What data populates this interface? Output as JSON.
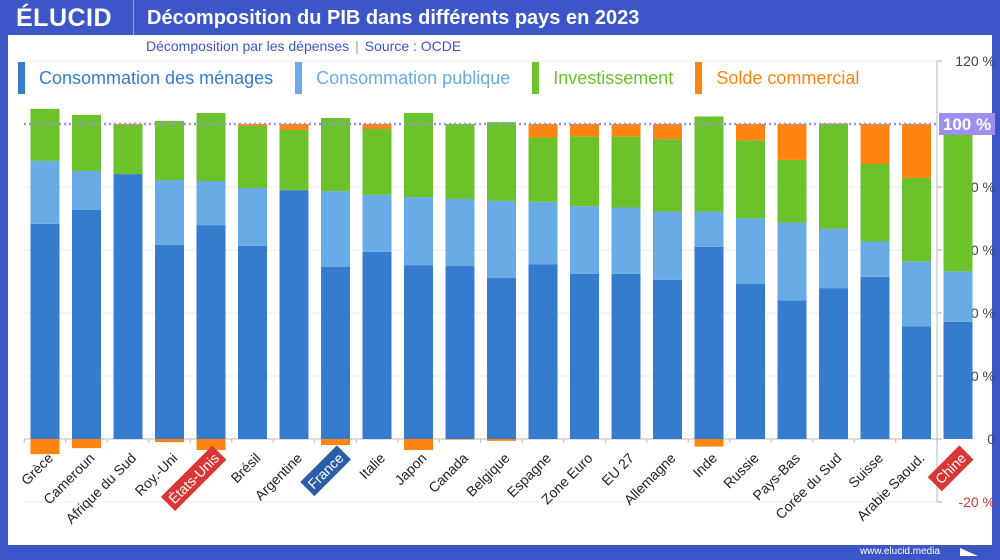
{
  "header": {
    "logo": "ÉLUCID",
    "title": "Décomposition du PIB dans différents pays en 2023"
  },
  "subtitle": {
    "text": "Décomposition par les dépenses",
    "source": "Source : OCDE"
  },
  "footer": {
    "url": "www.elucid.media"
  },
  "colors": {
    "frame": "#3c56c7",
    "household": "#357ccf",
    "public": "#69abe6",
    "investment": "#6cc22a",
    "trade": "#ff8410",
    "reference_line": "#9b8ff0",
    "highlight_red": "#d93636",
    "highlight_blue": "#2a5fa8"
  },
  "chart_data": {
    "type": "bar",
    "stacked": true,
    "title": "Décomposition du PIB dans différents pays en 2023",
    "ylim": [
      -20,
      120
    ],
    "yticks": [
      -20,
      0,
      20,
      40,
      60,
      80,
      100,
      120
    ],
    "ytick_labels": [
      "-20 %",
      "0",
      "20 %",
      "40 %",
      "60 %",
      "80 %",
      "100 %",
      "120 %"
    ],
    "reference_line": {
      "value": 100,
      "label": "100 %"
    },
    "grid": true,
    "legend_position": "top",
    "categories": [
      "Grèce",
      "Cameroun",
      "Afrique du Sud",
      "Roy.-Uni",
      "États-Unis",
      "Brésil",
      "Argentine",
      "France",
      "Italie",
      "Japon",
      "Canada",
      "Belgique",
      "Espagne",
      "Zone Euro",
      "EU 27",
      "Allemagne",
      "Inde",
      "Russie",
      "Pays-Bas",
      "Corée du Sud",
      "Suisse",
      "Arabie Saoud.",
      "Chine"
    ],
    "highlighted": {
      "États-Unis": "red",
      "France": "blue",
      "Chine": "red"
    },
    "series": [
      {
        "name": "Consommation des ménages",
        "values": [
          68.3,
          72.7,
          84.1,
          61.6,
          67.9,
          61.3,
          79.0,
          54.6,
          59.4,
          55.2,
          54.9,
          51.1,
          55.4,
          52.4,
          52.4,
          50.5,
          61.0,
          49.2,
          44.0,
          47.9,
          51.5,
          35.7,
          37.2
        ]
      },
      {
        "name": "Consommation publique",
        "values": [
          20.0,
          12.4,
          0,
          20.6,
          14.0,
          18.4,
          0,
          24.1,
          18.1,
          21.6,
          21.3,
          24.5,
          19.9,
          21.5,
          21.1,
          21.7,
          11.2,
          20.9,
          24.7,
          18.8,
          11.2,
          20.7,
          16.0
        ]
      },
      {
        "name": "Investissement",
        "values": [
          16.5,
          17.8,
          15.6,
          18.8,
          21.6,
          19.7,
          19.1,
          23.2,
          20.9,
          26.7,
          23.8,
          25.0,
          20.4,
          22.1,
          22.5,
          23.0,
          30.2,
          24.7,
          19.9,
          33.3,
          24.6,
          26.5,
          43.4
        ]
      },
      {
        "name": "Solde commercial",
        "values": [
          -4.8,
          -2.9,
          0.3,
          -1.0,
          -3.5,
          0.6,
          1.9,
          -1.9,
          1.6,
          -3.5,
          -0.2,
          -0.6,
          4.3,
          4.0,
          4.0,
          4.8,
          -2.4,
          5.2,
          11.4,
          0.2,
          12.7,
          17.1,
          3.4
        ]
      }
    ]
  }
}
